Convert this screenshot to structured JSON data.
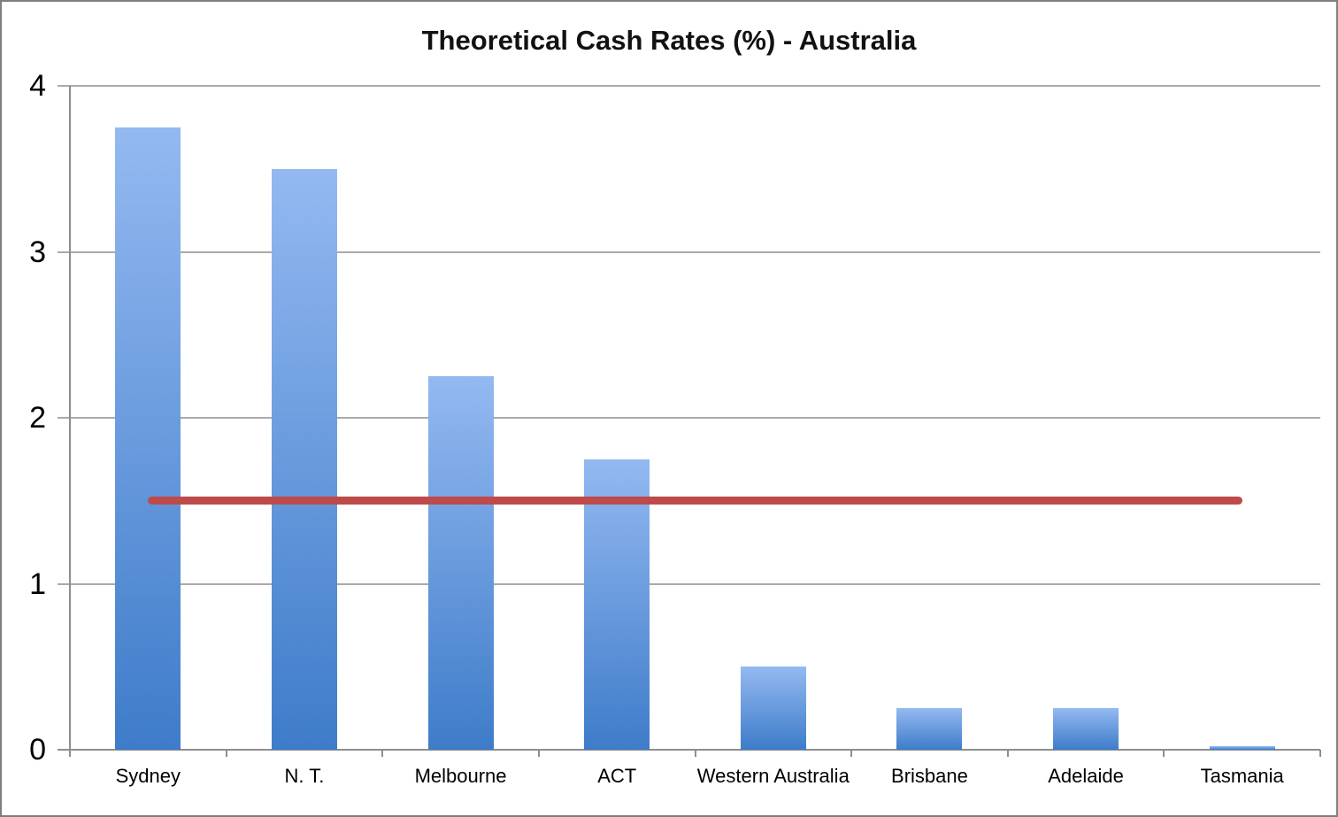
{
  "chart_data": {
    "type": "bar",
    "title": "Theoretical Cash Rates (%) - Australia",
    "categories": [
      "Sydney",
      "N. T.",
      "Melbourne",
      "ACT",
      "Western Australia",
      "Brisbane",
      "Adelaide",
      "Tasmania"
    ],
    "values": [
      3.75,
      3.5,
      2.25,
      1.75,
      0.5,
      0.25,
      0.25,
      0.02
    ],
    "reference_line": {
      "name": "reference-line",
      "value": 1.5,
      "from_category_index": 0,
      "to_category_index": 7
    },
    "xlabel": "",
    "ylabel": "",
    "ylim": [
      0,
      4
    ],
    "yticks": [
      "0",
      "1",
      "2",
      "3",
      "4"
    ],
    "ytick_values": [
      0,
      1,
      2,
      3,
      4
    ],
    "grid": true,
    "legend": "none",
    "colors": {
      "bar_gradient_top": "#94b9f1",
      "bar_gradient_bottom": "#3e7cc9",
      "reference_line": "#be4a49",
      "gridline": "#aaaaaa",
      "axis": "#8e8e8e",
      "frame_border": "#7f7f7f",
      "title_text": "#121212",
      "tick_label_text": "#000000"
    }
  }
}
